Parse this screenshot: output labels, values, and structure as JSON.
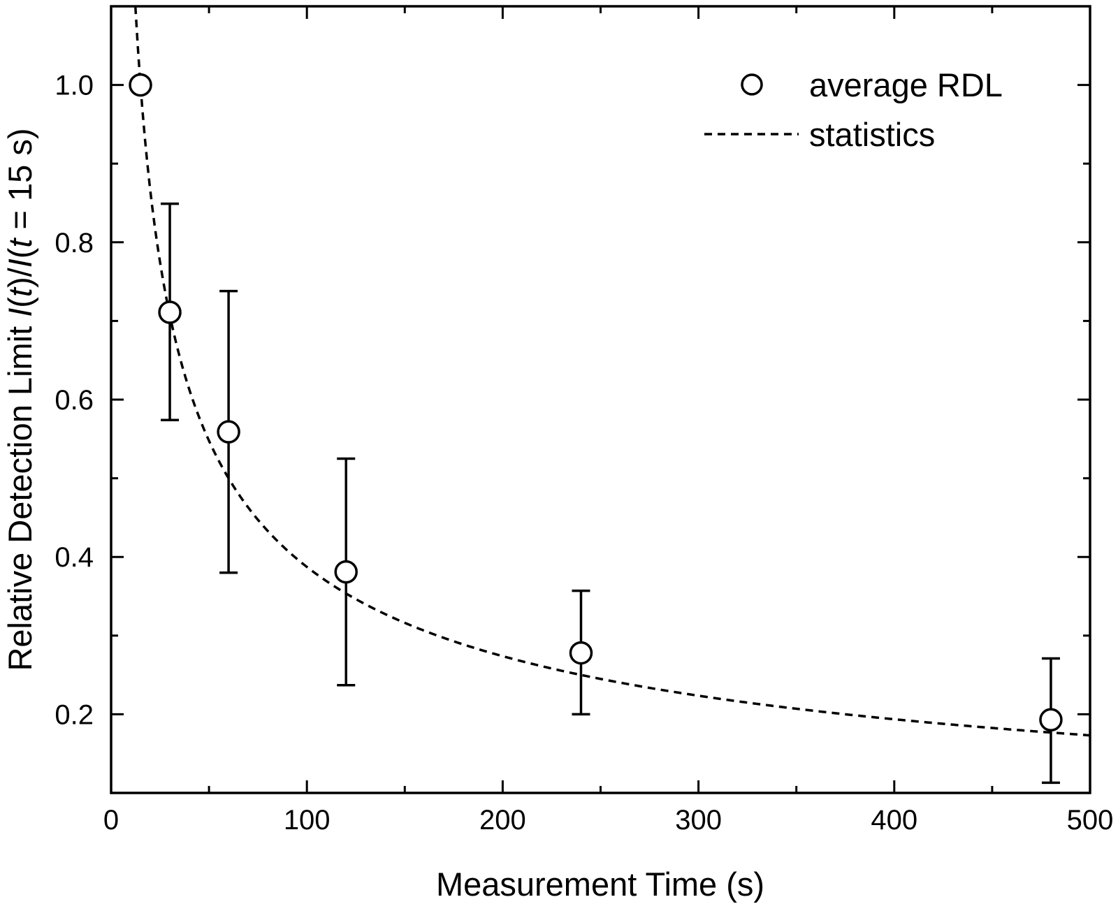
{
  "chart_data": {
    "type": "scatter",
    "xlabel": "Measurement Time (s)",
    "ylabel": {
      "prefix": "Relative Detection Limit ",
      "I1": "I",
      "open1": "(",
      "t1": "t",
      "mid": ")/",
      "I2": "I",
      "open2": "(",
      "t2": "t",
      "suffix": " = 15 s)"
    },
    "xlim": [
      0,
      500
    ],
    "ylim": [
      0.1,
      1.1
    ],
    "x_major_ticks": [
      0,
      100,
      200,
      300,
      400,
      500
    ],
    "x_tick_labels": [
      "0",
      "100",
      "200",
      "300",
      "400",
      "500"
    ],
    "x_minor_ticks": [
      50,
      150,
      250,
      350,
      450
    ],
    "y_major_ticks": [
      0.2,
      0.4,
      0.6,
      0.8,
      1.0
    ],
    "y_tick_labels": [
      "0.2",
      "0.4",
      "0.6",
      "0.8",
      "1.0"
    ],
    "y_minor_ticks": [
      0.1,
      0.3,
      0.5,
      0.7,
      0.9,
      1.1
    ],
    "grid": false,
    "legend_position": "top-right",
    "series": [
      {
        "name": "average RDL",
        "kind": "open-circle-markers-with-error-bars",
        "color": "#000000",
        "points": [
          {
            "x": 15,
            "y": 1.0,
            "err_low": null,
            "err_high": null
          },
          {
            "x": 30,
            "y": 0.711,
            "err_low": 0.574,
            "err_high": 0.849
          },
          {
            "x": 60,
            "y": 0.559,
            "err_low": 0.38,
            "err_high": 0.738
          },
          {
            "x": 120,
            "y": 0.381,
            "err_low": 0.237,
            "err_high": 0.525
          },
          {
            "x": 240,
            "y": 0.278,
            "err_low": 0.2,
            "err_high": 0.357
          },
          {
            "x": 480,
            "y": 0.193,
            "err_low": 0.113,
            "err_high": 0.271
          }
        ]
      },
      {
        "name": "statistics",
        "kind": "dashed-line",
        "color": "#000000",
        "function": "y = sqrt(15 / x)",
        "x_start": 12.4,
        "x_end": 500
      }
    ]
  }
}
